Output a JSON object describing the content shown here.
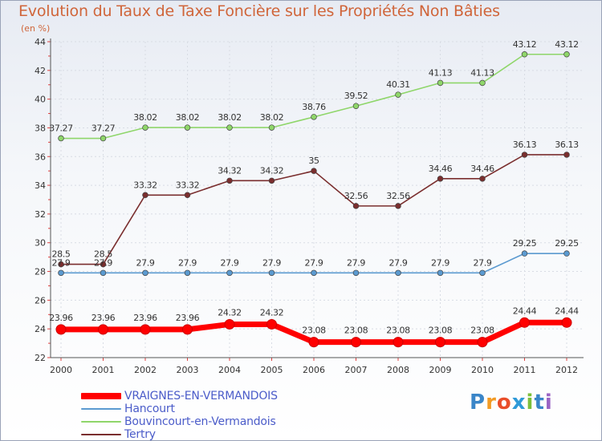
{
  "chart_data": {
    "type": "line",
    "title": "Evolution du Taux de Taxe Foncière sur les Propriétés Non Bâties",
    "subtitle": "(en %)",
    "xlabel": "",
    "ylabel": "",
    "ylim": [
      22,
      44
    ],
    "yticks": [
      22,
      24,
      26,
      28,
      30,
      32,
      34,
      36,
      38,
      40,
      42,
      44
    ],
    "grid": true,
    "legend_position": "bottom-left",
    "x": [
      "2000",
      "2001",
      "2002",
      "2003",
      "2004",
      "2005",
      "2006",
      "2007",
      "2008",
      "2009",
      "2010",
      "2011",
      "2012"
    ],
    "series": [
      {
        "name": "VRAIGNES-EN-VERMANDOIS",
        "color": "#ff0000",
        "values": [
          23.96,
          23.96,
          23.96,
          23.96,
          24.32,
          24.32,
          23.08,
          23.08,
          23.08,
          23.08,
          23.08,
          24.44,
          24.44
        ],
        "labels": [
          "23.96",
          "23.96",
          "23.96",
          "23.96",
          "24.32",
          "24.32",
          "23.08",
          "23.08",
          "23.08",
          "23.08",
          "23.08",
          "24.44",
          "24.44"
        ]
      },
      {
        "name": "Hancourt",
        "color": "#5b9ad0",
        "values": [
          27.9,
          27.9,
          27.9,
          27.9,
          27.9,
          27.9,
          27.9,
          27.9,
          27.9,
          27.9,
          27.9,
          29.25,
          29.25
        ],
        "labels": [
          "27.9",
          "27.9",
          "27.9",
          "27.9",
          "27.9",
          "27.9",
          "27.9",
          "27.9",
          "27.9",
          "27.9",
          "27.9",
          "29.25",
          "29.25"
        ]
      },
      {
        "name": "Bouvincourt-en-Vermandois",
        "color": "#8fd66a",
        "values": [
          37.27,
          37.27,
          38.02,
          38.02,
          38.02,
          38.02,
          38.76,
          39.52,
          40.31,
          41.13,
          41.13,
          43.12,
          43.12
        ],
        "labels": [
          "37.27",
          "37.27",
          "38.02",
          "38.02",
          "38.02",
          "38.02",
          "38.76",
          "39.52",
          "40.31",
          "41.13",
          "41.13",
          "43.12",
          "43.12"
        ]
      },
      {
        "name": "Tertry",
        "color": "#7a2e2e",
        "values": [
          28.5,
          28.5,
          33.32,
          33.32,
          34.32,
          34.32,
          35,
          32.56,
          32.56,
          34.46,
          34.46,
          36.13,
          36.13
        ],
        "labels": [
          "28.5",
          "28.5",
          "33.32",
          "33.32",
          "34.32",
          "34.32",
          "35",
          "32.56",
          "32.56",
          "34.46",
          "34.46",
          "36.13",
          "36.13"
        ]
      }
    ]
  },
  "brand": {
    "text": "Proxiti",
    "letters": [
      "P",
      "r",
      "o",
      "x",
      "i",
      "t",
      "i"
    ],
    "colors": [
      "#3a86c8",
      "#f29b24",
      "#e94e2a",
      "#2f9ad8",
      "#7bbf3b",
      "#3a86c8",
      "#9a64c4"
    ]
  }
}
